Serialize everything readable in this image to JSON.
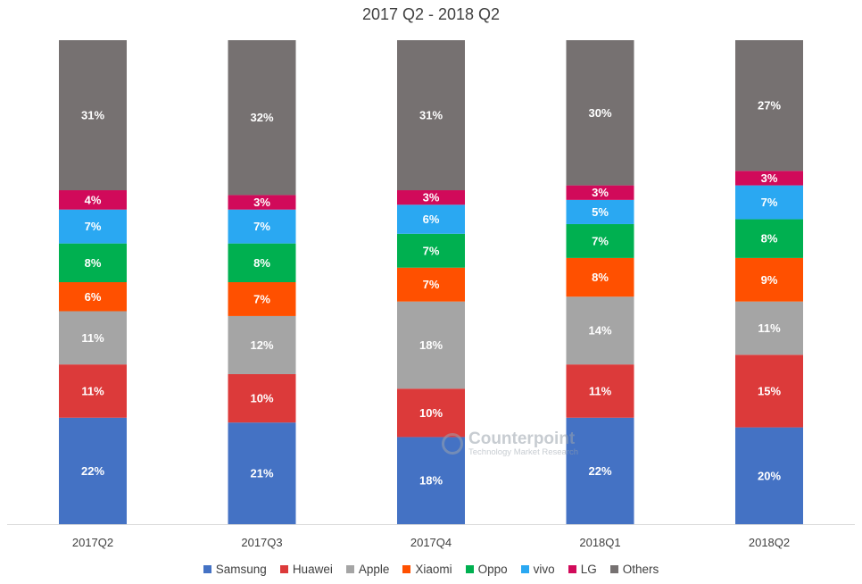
{
  "chart_data": {
    "type": "bar",
    "stacked": "100%",
    "title": "2017 Q2 - 2018 Q2",
    "categories": [
      "2017Q2",
      "2017Q3",
      "2017Q4",
      "2018Q1",
      "2018Q2"
    ],
    "series": [
      {
        "name": "Samsung",
        "color": "#4472C4",
        "values": [
          22,
          21,
          18,
          22,
          20
        ],
        "labels": [
          "22%",
          "21%",
          "18%",
          "22%",
          "20%"
        ]
      },
      {
        "name": "Huawei",
        "color": "#DC3A3A",
        "values": [
          11,
          10,
          10,
          11,
          15
        ],
        "labels": [
          "11%",
          "10%",
          "10%",
          "11%",
          "15%"
        ]
      },
      {
        "name": "Apple",
        "color": "#A5A5A5",
        "values": [
          11,
          12,
          18,
          14,
          11
        ],
        "labels": [
          "11%",
          "12%",
          "18%",
          "14%",
          "11%"
        ]
      },
      {
        "name": "Xiaomi",
        "color": "#FF5000",
        "values": [
          6,
          7,
          7,
          8,
          9
        ],
        "labels": [
          "6%",
          "7%",
          "7%",
          "8%",
          "9%"
        ]
      },
      {
        "name": "Oppo",
        "color": "#00B050",
        "values": [
          8,
          8,
          7,
          7,
          8
        ],
        "labels": [
          "8%",
          "8%",
          "7%",
          "7%",
          "8%"
        ]
      },
      {
        "name": "vivo",
        "color": "#2AA8F2",
        "values": [
          7,
          7,
          6,
          5,
          7
        ],
        "labels": [
          "7%",
          "7%",
          "6%",
          "5%",
          "7%"
        ]
      },
      {
        "name": "LG",
        "color": "#D10A5A",
        "values": [
          4,
          3,
          3,
          3,
          3
        ],
        "labels": [
          "4%",
          "3%",
          "3%",
          "3%",
          "3%"
        ]
      },
      {
        "name": "Others",
        "color": "#767171",
        "values": [
          31,
          32,
          31,
          30,
          27
        ],
        "labels": [
          "31%",
          "32%",
          "31%",
          "30%",
          "27%"
        ]
      }
    ],
    "legend_position": "bottom",
    "grid": false
  },
  "watermark": {
    "name": "Counterpoint",
    "tagline": "Technology Market Research"
  }
}
